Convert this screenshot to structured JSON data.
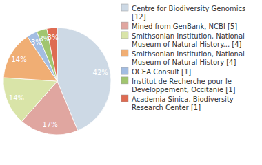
{
  "chart_data": {
    "type": "pie",
    "categories": [
      "Centre for Biodiversity Genomics [12]",
      "Mined from GenBank, NCBI [5]",
      "Smithsonian Institution, National Museum of Natural History... [4]",
      "Smithsonian Institution, National Museum of Natural History [4]",
      "OCEA Consult [1]",
      "Institut de Recherche pour le Developpement, Occitanie [1]",
      "Academia Sinica, Biodiversity Research Center [1]"
    ],
    "values": [
      42,
      17,
      14,
      14,
      3,
      3,
      3
    ],
    "value_labels": [
      "42%",
      "17%",
      "14%",
      "14%",
      "3%",
      "3%",
      "3%"
    ],
    "colors": [
      "#cdd9e5",
      "#e0a6a0",
      "#d9e4a8",
      "#f0ae74",
      "#a3bde2",
      "#a1c56f",
      "#de6b52"
    ],
    "data_labels": true,
    "legend": "right"
  }
}
